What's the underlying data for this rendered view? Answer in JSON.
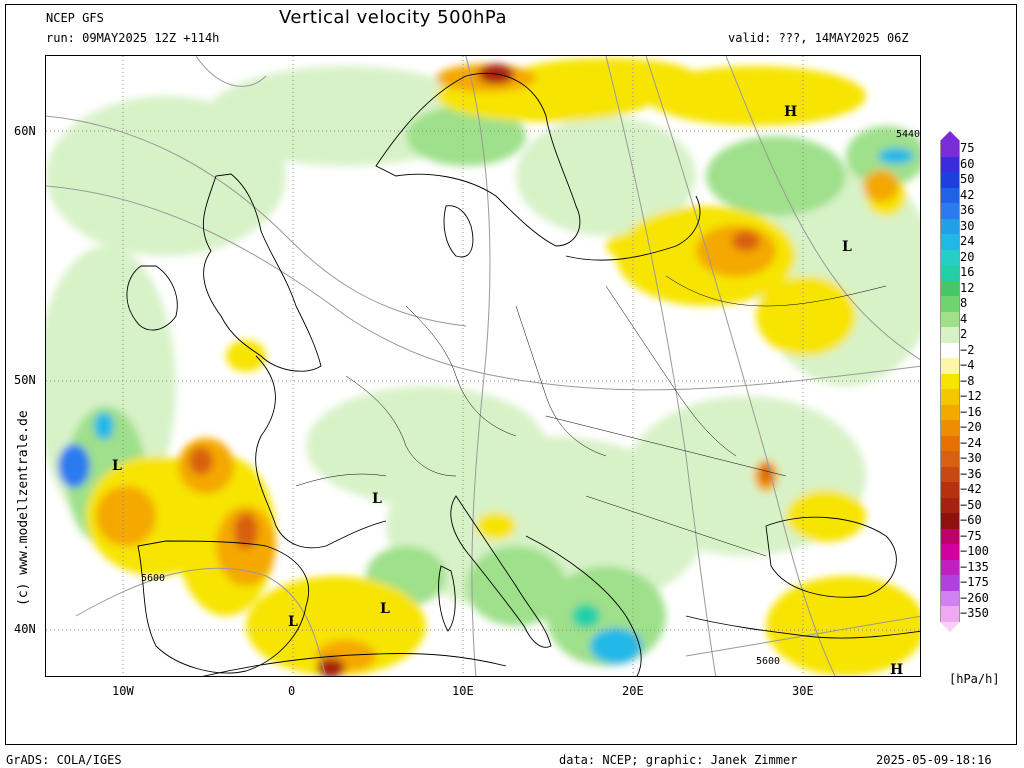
{
  "header": {
    "model": "NCEP GFS",
    "run": "run: 09MAY2025 12Z +114h",
    "title": "Vertical velocity 500hPa",
    "valid": "valid: ???, 14MAY2025 06Z"
  },
  "axes": {
    "lat_labels": [
      "60N",
      "50N",
      "40N"
    ],
    "lon_labels": [
      "10W",
      "0",
      "10E",
      "20E",
      "30E"
    ]
  },
  "map": {
    "region": "Europe",
    "contour_labels": [
      "5440",
      "5600",
      "5600"
    ],
    "pressure_marks": [
      "H",
      "L",
      "L",
      "L",
      "L",
      "L",
      "H"
    ]
  },
  "legend": {
    "unit": "[hPa/h]",
    "levels": [
      "75",
      "60",
      "50",
      "42",
      "36",
      "30",
      "24",
      "20",
      "16",
      "12",
      "8",
      "4",
      "2",
      "−2",
      "−4",
      "−8",
      "−12",
      "−16",
      "−20",
      "−24",
      "−30",
      "−36",
      "−42",
      "−50",
      "−60",
      "−75",
      "−100",
      "−135",
      "−175",
      "−260",
      "−350"
    ],
    "colors": {
      "purple": "#7b2cd8",
      "blue_dark": "#1e3ee0",
      "blue": "#2a7af0",
      "cyan": "#20b8e8",
      "teal": "#22d0a8",
      "green": "#44c866",
      "green_light": "#9fe08a",
      "pale_green": "#d8f2c8",
      "white": "#ffffff",
      "pale_yellow": "#fdf6a8",
      "yellow": "#f7e400",
      "orange": "#f4a800",
      "dark_orange": "#d86010",
      "brown": "#a82010",
      "magenta": "#d000a0",
      "pink": "#f0a8f0"
    }
  },
  "footer": {
    "left": "GrADS: COLA/IGES",
    "center": "data: NCEP; graphic: Janek Zimmer",
    "right": "2025-05-09-18:16"
  },
  "sidebar": {
    "copyright": "(c) www.modellzentrale.de"
  }
}
